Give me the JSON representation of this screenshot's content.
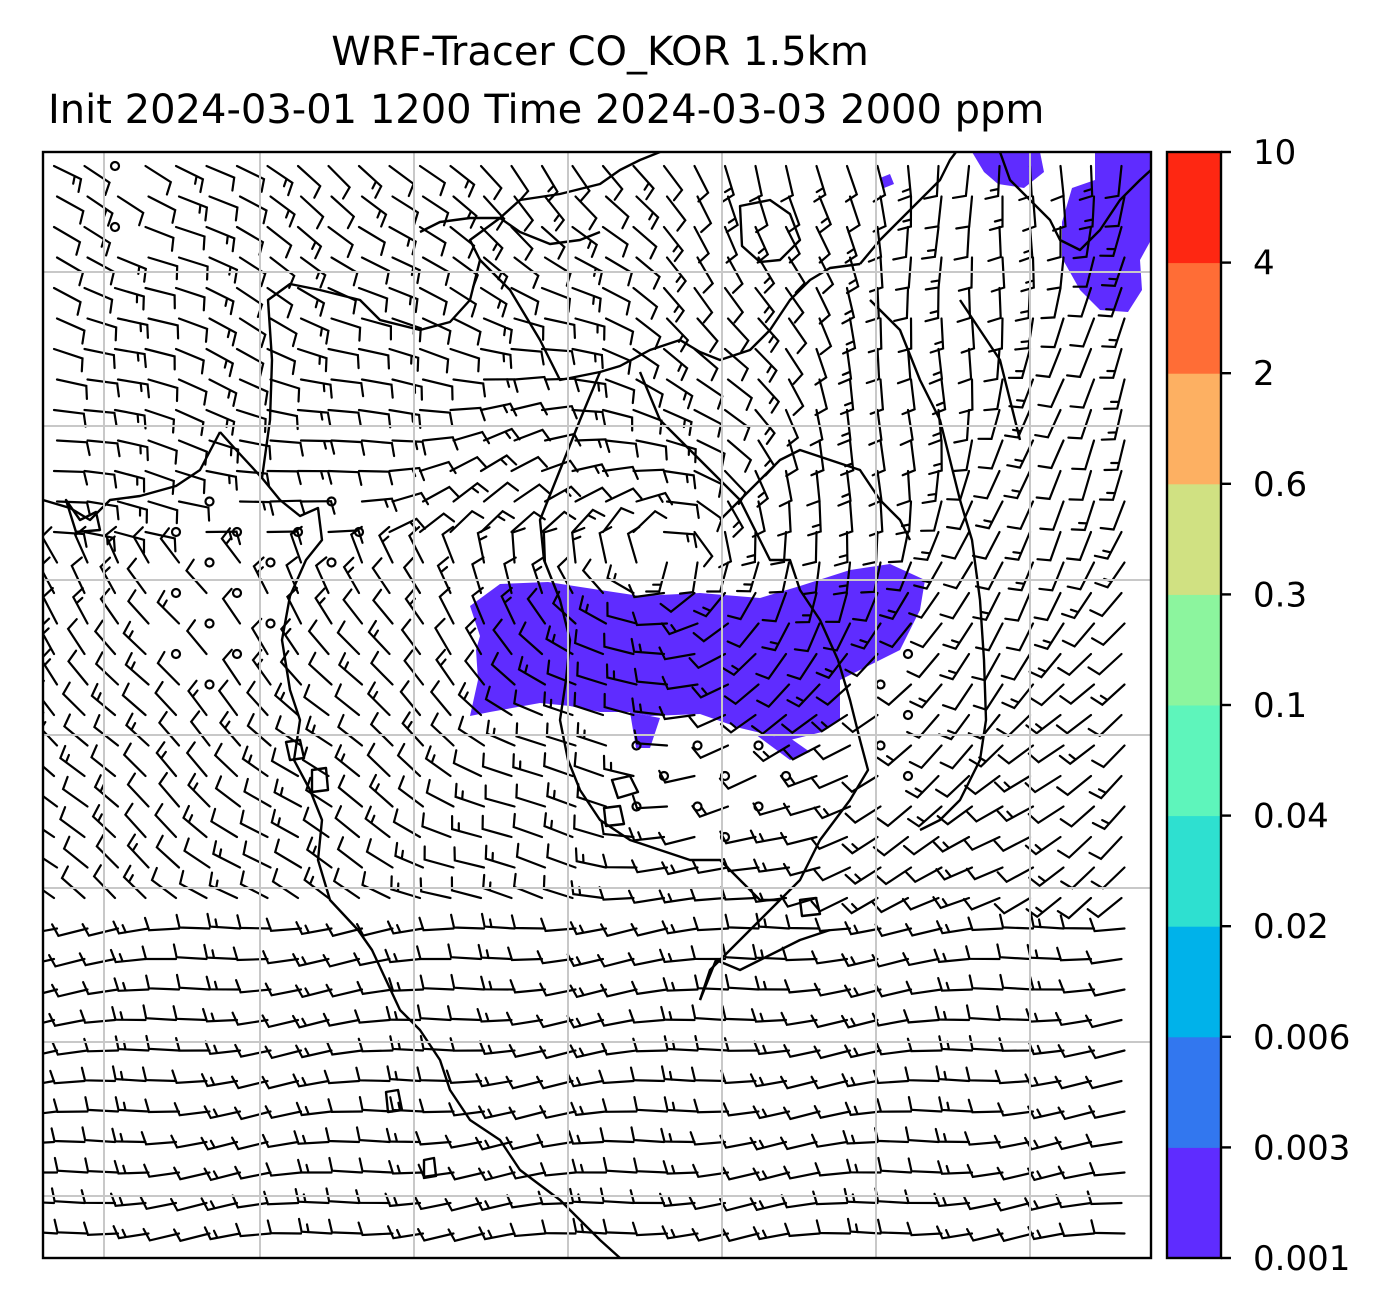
{
  "title": {
    "line1": "WRF-Tracer CO_KOR 1.5km",
    "line2": "Init 2024-03-01 1200 Time 2024-03-03 2000 ppm"
  },
  "colorbar": {
    "levels": [
      "0.001",
      "0.003",
      "0.006",
      "0.02",
      "0.04",
      "0.1",
      "0.3",
      "0.6",
      "2",
      "4",
      "10"
    ],
    "colors": [
      "#5f2cff",
      "#3277ef",
      "#00b2ea",
      "#2ee0d0",
      "#5ef5bb",
      "#8cf59e",
      "#d0e182",
      "#fdb062",
      "#ff6d36",
      "#fe2712"
    ]
  },
  "map": {
    "tracer_color": "#5f2cff",
    "coastline_color": "#000000",
    "gridline_color": "#bdbdbd"
  }
}
